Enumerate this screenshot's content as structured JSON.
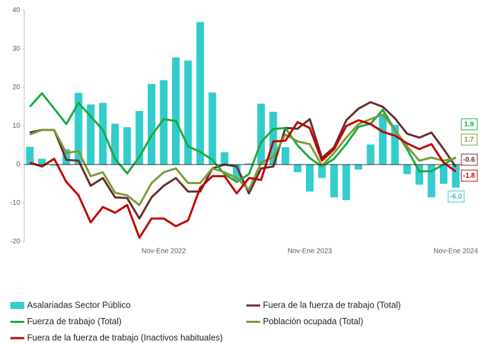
{
  "chart_data": {
    "type": "bar-line",
    "categories": [
      null,
      null,
      null,
      null,
      null,
      null,
      null,
      null,
      null,
      null,
      null,
      "Nov-Ene 2022",
      null,
      null,
      null,
      null,
      null,
      null,
      null,
      null,
      null,
      null,
      null,
      "Nov-Ene 2023",
      null,
      null,
      null,
      null,
      null,
      null,
      null,
      null,
      null,
      null,
      null,
      "Nov-Ene 2024"
    ],
    "ylim": [
      -20,
      40
    ],
    "yticks": [
      -20,
      -10,
      0,
      10,
      20,
      30,
      40
    ],
    "grid": false,
    "legend": "bottom",
    "series": [
      {
        "name": "Asalariadas Sector Público",
        "type": "bar",
        "color": "#33cccc",
        "values": [
          4.6,
          1.5,
          -0.3,
          4,
          18.6,
          15.6,
          16,
          10.6,
          9.7,
          13.9,
          20.9,
          21.9,
          27.8,
          27.0,
          37.0,
          18.7,
          3.2,
          -4,
          0.3,
          15.8,
          13.7,
          4.5,
          -2,
          -7,
          -3.5,
          -8.5,
          -9.2,
          -1.3,
          5.2,
          12.6,
          10.3,
          -2.5,
          -5.2,
          -8.5,
          -5,
          -6.0
        ],
        "value_labels": [
          null,
          null,
          null,
          null,
          null,
          null,
          null,
          null,
          null,
          null,
          null,
          null,
          null,
          null,
          null,
          null,
          null,
          null,
          null,
          null,
          null,
          null,
          null,
          null,
          null,
          null,
          null,
          null,
          null,
          null,
          null,
          null,
          null,
          null,
          null,
          "-6.0"
        ]
      },
      {
        "name": "Fuera de la fuerza de trabajo (Total)",
        "type": "line",
        "color": "#6b2c2c",
        "values": [
          8.3,
          9,
          9,
          1.2,
          1,
          -5.5,
          -3.5,
          -8.5,
          -8.7,
          -14,
          -8.5,
          -5.5,
          -3.5,
          -7,
          -7,
          -1,
          0,
          -0.5,
          -7.5,
          -1,
          -0.5,
          9.5,
          9.3,
          11.8,
          1.7,
          4.5,
          11.5,
          14.5,
          16.2,
          15,
          12,
          8,
          7,
          8.3,
          4,
          -0.6
        ]
      },
      {
        "name": "Fuerza de trabajo (Total)",
        "type": "line",
        "color": "#1aab40",
        "values": [
          15,
          18.5,
          14.5,
          10.5,
          16,
          12.5,
          9,
          1.5,
          -2.3,
          2,
          7.5,
          11.8,
          11.3,
          4.7,
          3.3,
          1.2,
          -2.5,
          -4.5,
          -2.5,
          5.8,
          9.2,
          9.5,
          5,
          1.7,
          -0.5,
          1.5,
          5.3,
          9.8,
          10.6,
          14.2,
          9,
          4,
          -1.8,
          -1.7,
          0,
          1.9
        ]
      },
      {
        "name": "Población ocupada (Total)",
        "type": "line",
        "color": "#7f9a3a",
        "values": [
          7.8,
          9,
          9,
          3,
          3.5,
          -3,
          -2,
          -7.3,
          -8,
          -10.5,
          -4.8,
          -2,
          -1,
          -4.8,
          -4.8,
          -1,
          -2,
          -3.5,
          -6.5,
          0.5,
          2,
          7.8,
          6,
          5.3,
          -0.3,
          3,
          7,
          10.5,
          11.8,
          13,
          9,
          4.7,
          1,
          1.8,
          1,
          1.7
        ]
      },
      {
        "name": "Fuera de la fuerza de trabajo (Inactivos habituales)",
        "type": "line",
        "color": "#c00000",
        "values": [
          0.5,
          -0.5,
          1.5,
          -4.5,
          -8,
          -15,
          -11,
          -12.5,
          -10.5,
          -19,
          -14,
          -14,
          -16,
          -14.5,
          -6,
          -3,
          -3,
          -7.5,
          -3.5,
          -4,
          6,
          6.2,
          11,
          9.5,
          1,
          4,
          10,
          11.5,
          10.5,
          8.5,
          7.5,
          5.5,
          4,
          5.3,
          0.5,
          -1.8
        ]
      }
    ]
  }
}
